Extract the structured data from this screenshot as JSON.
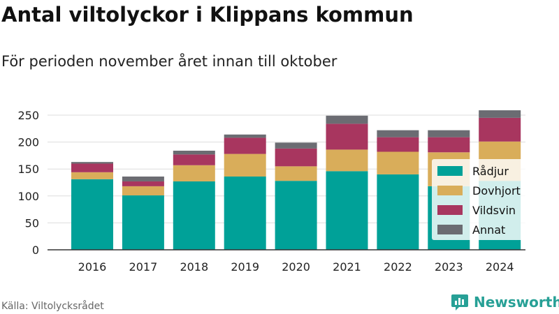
{
  "title": "Antal viltolyckor i Klippans kommun",
  "subtitle": "För perioden november året innan till oktober",
  "source": "Källa: Viltolycksrådet",
  "brand": {
    "name": "Newsworthy",
    "icon": "newsworthy-logo-icon",
    "color": "#27a096"
  },
  "chart_data": {
    "type": "bar",
    "stacked": true,
    "categories": [
      "2016",
      "2017",
      "2018",
      "2019",
      "2020",
      "2021",
      "2022",
      "2023",
      "2024"
    ],
    "series": [
      {
        "name": "Rådjur",
        "color": "#00a198",
        "values": [
          131,
          101,
          127,
          136,
          128,
          146,
          140,
          118,
          128
        ]
      },
      {
        "name": "Dovhjort",
        "color": "#d9ad5a",
        "values": [
          13,
          17,
          30,
          42,
          27,
          40,
          42,
          63,
          73
        ]
      },
      {
        "name": "Vildsvin",
        "color": "#a8365f",
        "values": [
          16,
          9,
          20,
          30,
          33,
          48,
          27,
          28,
          44
        ]
      },
      {
        "name": "Annat",
        "color": "#6b6c72",
        "values": [
          3,
          9,
          7,
          6,
          11,
          15,
          13,
          13,
          14
        ]
      }
    ],
    "yticks": [
      0,
      50,
      100,
      150,
      200,
      250
    ],
    "ylim": [
      0,
      250
    ],
    "grid": true,
    "legend_position": "right"
  }
}
